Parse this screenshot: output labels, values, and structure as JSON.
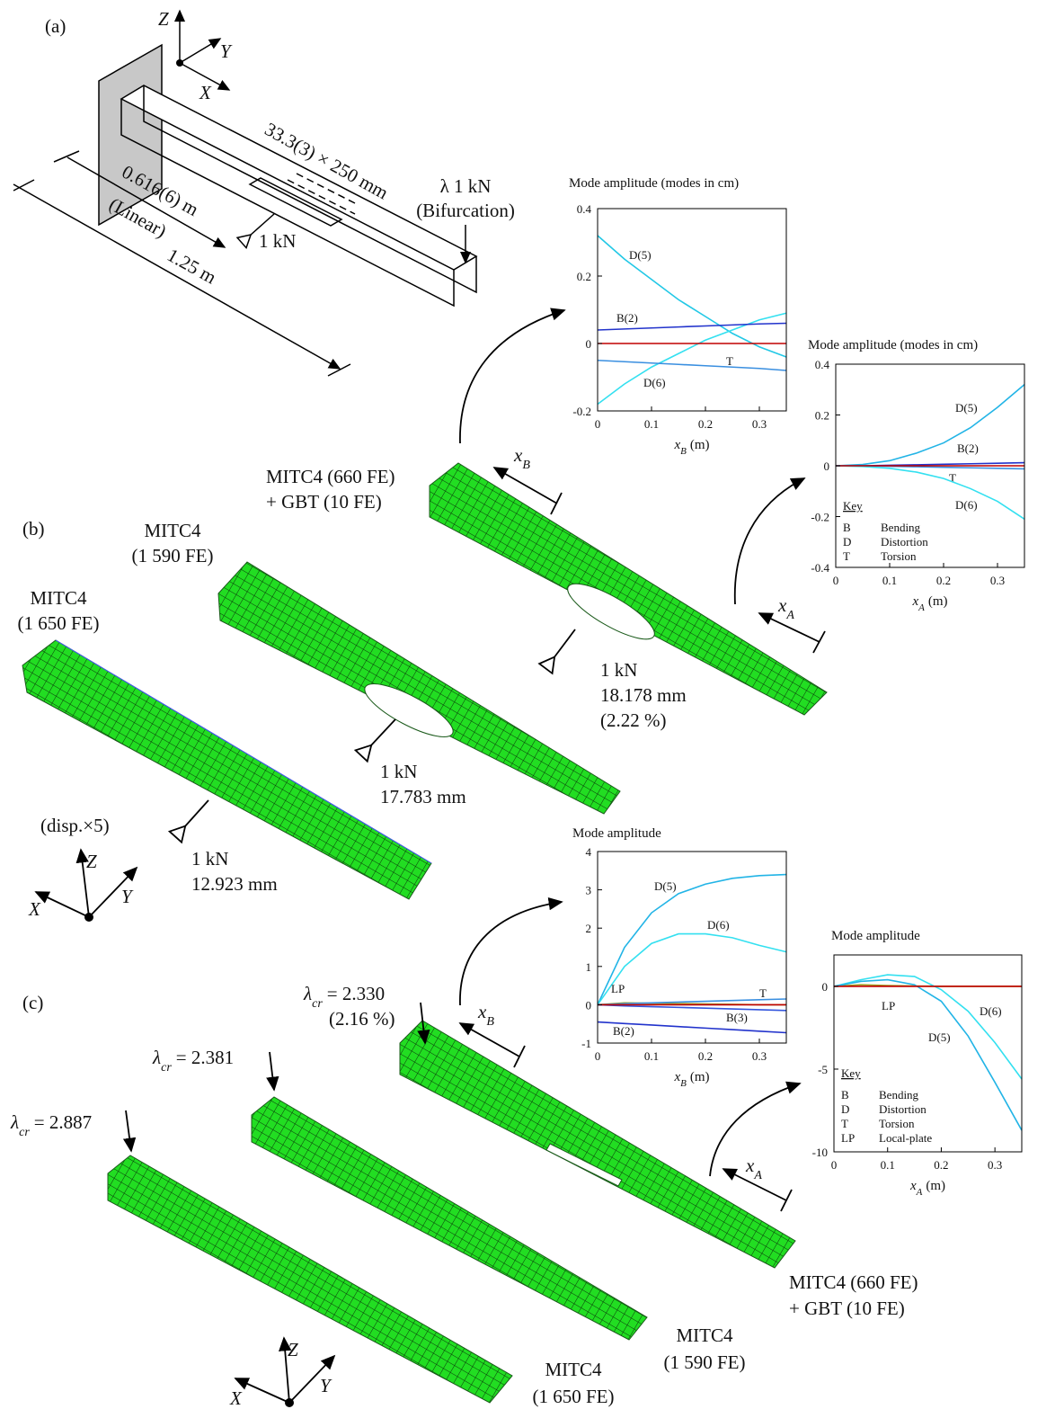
{
  "figure": {
    "panel_labels": [
      "(a)",
      "(b)",
      "(c)"
    ],
    "a": {
      "axes": [
        "Z",
        "Y",
        "X"
      ],
      "hole": "33.3(3) × 250 mm",
      "dist_load": "0.616(6) m",
      "linear": "(Linear)",
      "length": "1.25 m",
      "load": "1 kN",
      "bif_load": "λ 1 kN",
      "bifurcation": "(Bifurcation)"
    },
    "b": {
      "hybrid": [
        "MITC4 (660 FE)",
        "+ GBT (10 FE)"
      ],
      "mitc_1590": [
        "MITC4",
        "(1 590 FE)"
      ],
      "mitc_1650": [
        "MITC4",
        "(1 650 FE)"
      ],
      "hybrid_result": [
        "1 kN",
        "18.178 mm",
        "(2.22 %)"
      ],
      "mitc_1590_result": [
        "1 kN",
        "17.783 mm"
      ],
      "mitc_1650_result": [
        "1 kN",
        "12.923 mm"
      ],
      "scale": "(disp.×5)",
      "axes": [
        "X",
        "Y",
        "Z"
      ],
      "xB": {
        "var": "x",
        "sub": "B"
      },
      "xA": {
        "var": "x",
        "sub": "A"
      }
    },
    "c": {
      "hybrid_lambda": {
        "sym": "λ",
        "sub": "cr",
        "rest": "= 2.330"
      },
      "hybrid_error": "(2.16 %)",
      "mitc_1590_lambda": {
        "sym": "λ",
        "sub": "cr",
        "rest": "= 2.381"
      },
      "mitc_1650_lambda": {
        "sym": "λ",
        "sub": "cr",
        "rest": "= 2.887"
      },
      "hybrid": [
        "MITC4 (660 FE)",
        "+ GBT (10 FE)"
      ],
      "mitc_1590": [
        "MITC4",
        "(1 590 FE)"
      ],
      "mitc_1650": [
        "MITC4",
        "(1 650 FE)"
      ],
      "axes": [
        "X",
        "Y",
        "Z"
      ],
      "xB": {
        "var": "x",
        "sub": "B"
      },
      "xA": {
        "var": "x",
        "sub": "A"
      }
    }
  },
  "chart_data": [
    {
      "type": "line",
      "title": "Mode amplitude (modes in cm)",
      "xlabel": {
        "var": "x",
        "sub": "B",
        "unit": "(m)"
      },
      "x": [
        0,
        0.05,
        0.1,
        0.15,
        0.2,
        0.25,
        0.3,
        0.35
      ],
      "xlim": [
        0,
        0.35
      ],
      "xticks": [
        0,
        0.1,
        0.2,
        0.3
      ],
      "ylim": [
        -0.2,
        0.4
      ],
      "yticks": [
        -0.2,
        0,
        0.2,
        0.4
      ],
      "series": [
        {
          "name": "D(5)",
          "color": "#22c8e6",
          "values": [
            0.32,
            0.25,
            0.19,
            0.13,
            0.08,
            0.03,
            -0.01,
            -0.04
          ]
        },
        {
          "name": "D(6)",
          "color": "#33e0f0",
          "values": [
            -0.18,
            -0.12,
            -0.07,
            -0.03,
            0.01,
            0.04,
            0.07,
            0.09
          ]
        },
        {
          "name": "B(2)",
          "color": "#2233cc",
          "values": [
            0.04,
            0.043,
            0.046,
            0.049,
            0.052,
            0.055,
            0.058,
            0.06
          ]
        },
        {
          "name": "T",
          "color": "#3a8fe0",
          "values": [
            -0.05,
            -0.054,
            -0.058,
            -0.062,
            -0.066,
            -0.07,
            -0.074,
            -0.08
          ]
        },
        {
          "color": "#c00000",
          "values": [
            0,
            0,
            0,
            0,
            0,
            0,
            0,
            0
          ]
        }
      ]
    },
    {
      "type": "line",
      "title": "Mode amplitude (modes in cm)",
      "xlabel": {
        "var": "x",
        "sub": "A",
        "unit": "(m)"
      },
      "x": [
        0,
        0.05,
        0.1,
        0.15,
        0.2,
        0.25,
        0.3,
        0.35
      ],
      "xlim": [
        0,
        0.35
      ],
      "xticks": [
        0,
        0.1,
        0.2,
        0.3
      ],
      "ylim": [
        -0.4,
        0.4
      ],
      "yticks": [
        -0.4,
        -0.2,
        0,
        0.2,
        0.4
      ],
      "series": [
        {
          "name": "D(5)",
          "color": "#22b4e6",
          "values": [
            0,
            0.005,
            0.02,
            0.05,
            0.09,
            0.15,
            0.23,
            0.32
          ]
        },
        {
          "name": "B(2)",
          "color": "#2233cc",
          "values": [
            0,
            0,
            0.002,
            0.004,
            0.006,
            0.008,
            0.01,
            0.012
          ]
        },
        {
          "name": "T",
          "color": "#3a8fe0",
          "values": [
            0,
            0,
            -0.002,
            -0.004,
            -0.006,
            -0.008,
            -0.01,
            -0.012
          ]
        },
        {
          "name": "D(6)",
          "color": "#33e0f0",
          "values": [
            0,
            -0.003,
            -0.01,
            -0.025,
            -0.05,
            -0.09,
            -0.14,
            -0.21
          ]
        },
        {
          "color": "#c00000",
          "values": [
            0,
            0,
            0,
            0,
            0,
            0,
            0,
            0
          ]
        }
      ],
      "key": {
        "title": "Key",
        "entries": [
          {
            "code": "B",
            "text": "Bending"
          },
          {
            "code": "D",
            "text": "Distortion"
          },
          {
            "code": "T",
            "text": "Torsion"
          }
        ]
      }
    },
    {
      "type": "line",
      "title": "Mode amplitude",
      "xlabel": {
        "var": "x",
        "sub": "B",
        "unit": "(m)"
      },
      "x": [
        0,
        0.05,
        0.1,
        0.15,
        0.2,
        0.25,
        0.3,
        0.35
      ],
      "xlim": [
        0,
        0.35
      ],
      "xticks": [
        0,
        0.1,
        0.2,
        0.3
      ],
      "ylim": [
        -1,
        4
      ],
      "yticks": [
        -1,
        0,
        1,
        2,
        3,
        4
      ],
      "series": [
        {
          "name": "D(5)",
          "color": "#22b4e6",
          "values": [
            0,
            1.5,
            2.4,
            2.9,
            3.15,
            3.3,
            3.37,
            3.4
          ]
        },
        {
          "name": "D(6)",
          "color": "#33e0f0",
          "values": [
            0,
            1.0,
            1.6,
            1.85,
            1.85,
            1.75,
            1.55,
            1.38
          ]
        },
        {
          "name": "LP",
          "color": "#a0a020",
          "values": [
            0,
            0.05,
            0.04,
            0.03,
            0.02,
            0.01,
            0,
            0
          ]
        },
        {
          "name": "T",
          "color": "#3a8fe0",
          "values": [
            0,
            0.03,
            0.05,
            0.07,
            0.09,
            0.11,
            0.13,
            0.15
          ]
        },
        {
          "name": "B(3)",
          "color": "#3355dd",
          "values": [
            0,
            -0.03,
            -0.05,
            -0.07,
            -0.09,
            -0.11,
            -0.13,
            -0.15
          ]
        },
        {
          "name": "B(2)",
          "color": "#2233cc",
          "values": [
            -0.45,
            -0.49,
            -0.53,
            -0.57,
            -0.61,
            -0.65,
            -0.69,
            -0.73
          ]
        },
        {
          "color": "#c00000",
          "values": [
            0,
            0,
            0,
            0,
            0,
            0,
            0,
            0
          ]
        }
      ]
    },
    {
      "type": "line",
      "title": "Mode amplitude",
      "xlabel": {
        "var": "x",
        "sub": "A",
        "unit": "(m)"
      },
      "x": [
        0,
        0.05,
        0.1,
        0.15,
        0.2,
        0.25,
        0.3,
        0.35
      ],
      "xlim": [
        0,
        0.35
      ],
      "xticks": [
        0,
        0.1,
        0.2,
        0.3
      ],
      "ylim": [
        -10,
        1.9
      ],
      "yticks": [
        -10,
        -5,
        0
      ],
      "series": [
        {
          "name": "LP",
          "color": "#a0a020",
          "values": [
            0,
            0.1,
            0.05,
            0.02,
            0,
            0,
            0,
            0
          ]
        },
        {
          "name": "D(6)",
          "color": "#33e0f0",
          "values": [
            0,
            0.4,
            0.7,
            0.6,
            -0.2,
            -1.5,
            -3.4,
            -5.6
          ]
        },
        {
          "name": "D(5)",
          "color": "#22b4e6",
          "values": [
            0,
            0.3,
            0.4,
            0.1,
            -0.9,
            -3,
            -5.8,
            -8.7
          ]
        },
        {
          "color": "#c00000",
          "values": [
            0,
            0,
            0,
            0,
            0,
            0,
            0,
            0
          ]
        }
      ],
      "key": {
        "title": "Key",
        "entries": [
          {
            "code": "B",
            "text": "Bending"
          },
          {
            "code": "D",
            "text": "Distortion"
          },
          {
            "code": "T",
            "text": "Torsion"
          },
          {
            "code": "LP",
            "text": "Local-plate"
          }
        ]
      }
    }
  ]
}
